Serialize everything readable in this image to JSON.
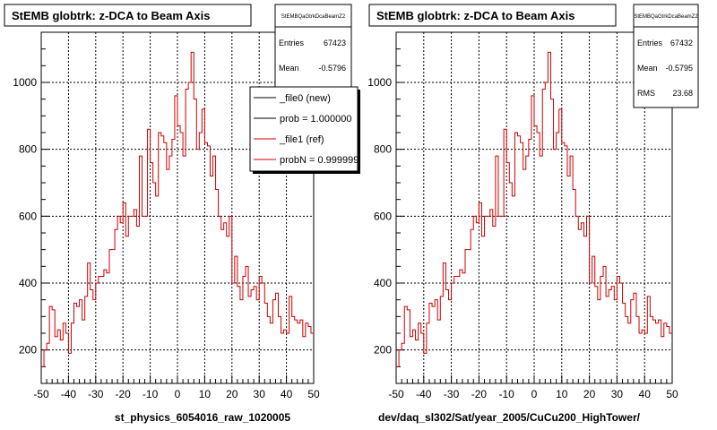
{
  "corner_text": "",
  "colors": {
    "new_line": "#000000",
    "ref_line": "#cc0000",
    "axis": "#000000",
    "grid": "#000000"
  },
  "chart_data": [
    {
      "type": "histogram",
      "title": "StEMB globtrk: z-DCA to Beam Axis",
      "xlabel": "st_physics_6054016_raw_1020005",
      "ylabel": "",
      "xlim": [
        -50,
        50
      ],
      "ylim": [
        100,
        1150
      ],
      "grid": true,
      "x_ticks": [
        -50,
        -40,
        -30,
        -20,
        -10,
        0,
        10,
        20,
        30,
        40,
        50
      ],
      "y_ticks": [
        200,
        400,
        600,
        800,
        1000
      ],
      "stats": {
        "name": "StEMBQaGtrkDcaBeamZ2",
        "rows": [
          [
            "Entries",
            "67423"
          ],
          [
            "Mean",
            "-0.5796"
          ]
        ]
      },
      "legend": {
        "position": "top-right",
        "entries": [
          {
            "label": "_file0 (new)",
            "color": "#000000"
          },
          {
            "label": "prob = 1.000000",
            "color": "#000000"
          },
          {
            "label": "_file1 (ref)",
            "color": "#cc0000"
          },
          {
            "label": "probN = 0.999999",
            "color": "#cc0000"
          }
        ]
      },
      "bin_low": -50,
      "bin_width": 1,
      "series": [
        {
          "name": "_file1 (ref)",
          "color": "#cc0000",
          "values": [
            150,
            200,
            220,
            330,
            320,
            240,
            260,
            230,
            280,
            250,
            190,
            280,
            340,
            330,
            350,
            290,
            360,
            460,
            380,
            350,
            400,
            420,
            420,
            440,
            430,
            500,
            500,
            560,
            600,
            580,
            640,
            540,
            600,
            600,
            620,
            570,
            780,
            600,
            600,
            860,
            760,
            700,
            660,
            850,
            840,
            820,
            740,
            780,
            830,
            960,
            870,
            850,
            780,
            980,
            1000,
            1090,
            950,
            800,
            850,
            920,
            820,
            810,
            720,
            780,
            680,
            600,
            560,
            580,
            540,
            600,
            400,
            480,
            390,
            350,
            420,
            450,
            360,
            380,
            390,
            350,
            420,
            400,
            340,
            300,
            280,
            350,
            370,
            300,
            250,
            260,
            250,
            360,
            300,
            290,
            280,
            290,
            240,
            280,
            270,
            250
          ]
        }
      ]
    },
    {
      "type": "histogram",
      "title": "StEMB globtrk: z-DCA to Beam Axis",
      "xlabel": "dev/daq_sl302/Sat/year_2005/CuCu200_HighTower/",
      "ylabel": "",
      "xlim": [
        -50,
        50
      ],
      "ylim": [
        100,
        1150
      ],
      "grid": true,
      "x_ticks": [
        -50,
        -40,
        -30,
        -20,
        -10,
        0,
        10,
        20,
        30,
        40,
        50
      ],
      "y_ticks": [
        200,
        400,
        600,
        800,
        1000
      ],
      "stats": {
        "name": "StEMBQaGtrkDcaBeamZ2",
        "rows": [
          [
            "Entries",
            "67432"
          ],
          [
            "Mean",
            "-0.5795"
          ],
          [
            "RMS",
            "23.68"
          ]
        ]
      },
      "bin_low": -50,
      "bin_width": 1,
      "series": [
        {
          "name": "",
          "color": "#cc0000",
          "values": [
            150,
            200,
            220,
            330,
            320,
            240,
            260,
            230,
            280,
            250,
            190,
            280,
            340,
            330,
            350,
            290,
            360,
            460,
            380,
            350,
            400,
            420,
            420,
            440,
            430,
            500,
            500,
            560,
            600,
            580,
            640,
            540,
            600,
            600,
            620,
            570,
            780,
            600,
            600,
            860,
            760,
            700,
            660,
            850,
            840,
            820,
            740,
            780,
            830,
            960,
            870,
            850,
            780,
            980,
            1000,
            1090,
            950,
            800,
            850,
            920,
            820,
            810,
            720,
            780,
            680,
            600,
            560,
            580,
            540,
            600,
            400,
            480,
            390,
            350,
            420,
            450,
            360,
            380,
            390,
            350,
            420,
            400,
            340,
            300,
            280,
            350,
            370,
            300,
            250,
            260,
            250,
            360,
            300,
            290,
            280,
            290,
            240,
            280,
            270,
            250
          ]
        }
      ]
    }
  ]
}
